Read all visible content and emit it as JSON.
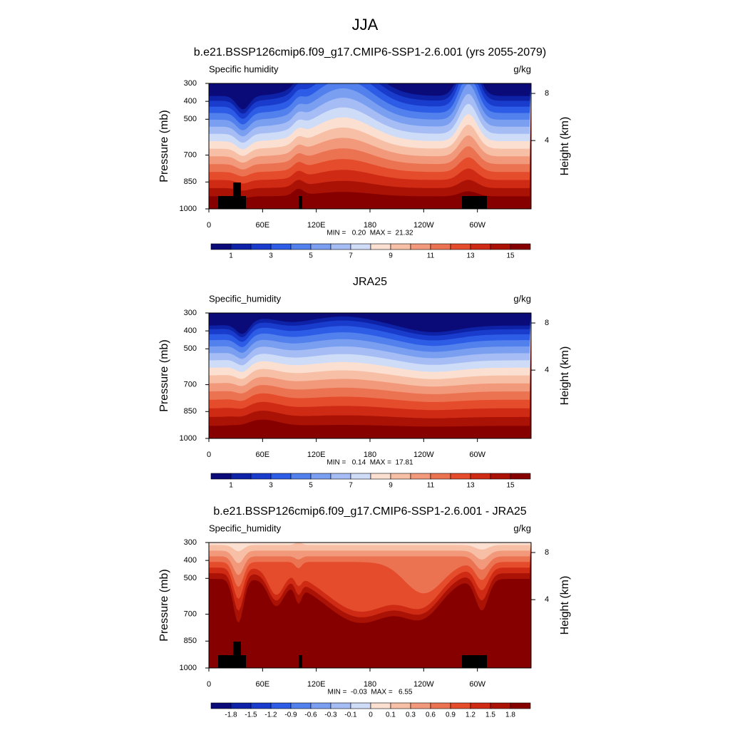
{
  "title": "JJA",
  "chart_data": [
    {
      "type": "contour",
      "title": "b.e21.BSSP126cmip6.f09_g17.CMIP6-SSP1-2.6.001 (yrs 2055-2079)",
      "left_label": "Specific humidity",
      "right_label": "g/kg",
      "ylabel": "Pressure (mb)",
      "y2label": "Height (km)",
      "stats": "MIN =   0.20  MAX =  21.32",
      "xlim": [
        0,
        360
      ],
      "xticks": [
        0,
        {
          "value": 60,
          "label": "60E"
        },
        {
          "value": 120,
          "label": "120E"
        },
        180,
        {
          "value": 240,
          "label": "120W"
        },
        {
          "value": 300,
          "label": "60W"
        }
      ],
      "ylim": [
        1000,
        300
      ],
      "yticks": [
        300,
        400,
        500,
        700,
        850,
        1000
      ],
      "y2lim": [
        -1.8,
        8.85
      ],
      "y2ticks": [
        4,
        8
      ],
      "cbar_levels": [
        1,
        2,
        3,
        4,
        5,
        6,
        7,
        8,
        9,
        10,
        11,
        12,
        13,
        14,
        15
      ],
      "cbar_ticks": [
        1,
        3,
        5,
        7,
        9,
        11,
        13,
        15
      ],
      "colors": [
        "#0a0a78",
        "#0d22a6",
        "#1a3ccc",
        "#2d5ce6",
        "#5280ec",
        "#7b9ff0",
        "#a5bdf4",
        "#cfdcf8",
        "#fbe0d2",
        "#f7c0a6",
        "#f2997c",
        "#ec7352",
        "#e44c2c",
        "#cf2a14",
        "#ab1206",
        "#870000"
      ]
    },
    {
      "type": "contour",
      "title": "JRA25",
      "left_label": "Specific_humidity",
      "right_label": "g/kg",
      "ylabel": "Pressure (mb)",
      "y2label": "Height (km)",
      "stats": "MIN =   0.14  MAX =  17.81",
      "xlim": [
        0,
        360
      ],
      "xticks": [
        0,
        {
          "value": 60,
          "label": "60E"
        },
        {
          "value": 120,
          "label": "120E"
        },
        180,
        {
          "value": 240,
          "label": "120W"
        },
        {
          "value": 300,
          "label": "60W"
        }
      ],
      "ylim": [
        1000,
        300
      ],
      "yticks": [
        300,
        400,
        500,
        700,
        850,
        1000
      ],
      "y2lim": [
        -1.8,
        8.85
      ],
      "y2ticks": [
        4,
        8
      ],
      "cbar_levels": [
        1,
        2,
        3,
        4,
        5,
        6,
        7,
        8,
        9,
        10,
        11,
        12,
        13,
        14,
        15
      ],
      "cbar_ticks": [
        1,
        3,
        5,
        7,
        9,
        11,
        13,
        15
      ],
      "colors": [
        "#0a0a78",
        "#0d22a6",
        "#1a3ccc",
        "#2d5ce6",
        "#5280ec",
        "#7b9ff0",
        "#a5bdf4",
        "#cfdcf8",
        "#fbe0d2",
        "#f7c0a6",
        "#f2997c",
        "#ec7352",
        "#e44c2c",
        "#cf2a14",
        "#ab1206",
        "#870000"
      ]
    },
    {
      "type": "contour",
      "title": "b.e21.BSSP126cmip6.f09_g17.CMIP6-SSP1-2.6.001 - JRA25",
      "left_label": "Specific_humidity",
      "right_label": "g/kg",
      "ylabel": "Pressure (mb)",
      "y2label": "Height (km)",
      "stats": "MIN =  -0.03  MAX =   6.55",
      "xlim": [
        0,
        360
      ],
      "xticks": [
        0,
        {
          "value": 60,
          "label": "60E"
        },
        {
          "value": 120,
          "label": "120E"
        },
        180,
        {
          "value": 240,
          "label": "120W"
        },
        {
          "value": 300,
          "label": "60W"
        }
      ],
      "ylim": [
        1000,
        300
      ],
      "yticks": [
        300,
        400,
        500,
        700,
        850,
        1000
      ],
      "y2lim": [
        -1.8,
        8.85
      ],
      "y2ticks": [
        4,
        8
      ],
      "cbar_levels": [
        -1.8,
        -1.5,
        -1.2,
        -0.9,
        -0.6,
        -0.3,
        -0.1,
        0,
        0.1,
        0.3,
        0.6,
        0.9,
        1.2,
        1.5,
        1.8
      ],
      "cbar_ticks": [
        -1.8,
        -1.5,
        -1.2,
        -0.9,
        -0.6,
        -0.3,
        -0.1,
        0,
        0.1,
        0.3,
        0.6,
        0.9,
        1.2,
        1.5,
        1.8
      ],
      "colors": [
        "#0a0a78",
        "#0d22a6",
        "#1a3ccc",
        "#2d5ce6",
        "#5280ec",
        "#7b9ff0",
        "#a5bdf4",
        "#cfdcf8",
        "#fbe0d2",
        "#f7c0a6",
        "#f2997c",
        "#ec7352",
        "#e44c2c",
        "#cf2a14",
        "#ab1206",
        "#870000"
      ]
    }
  ]
}
